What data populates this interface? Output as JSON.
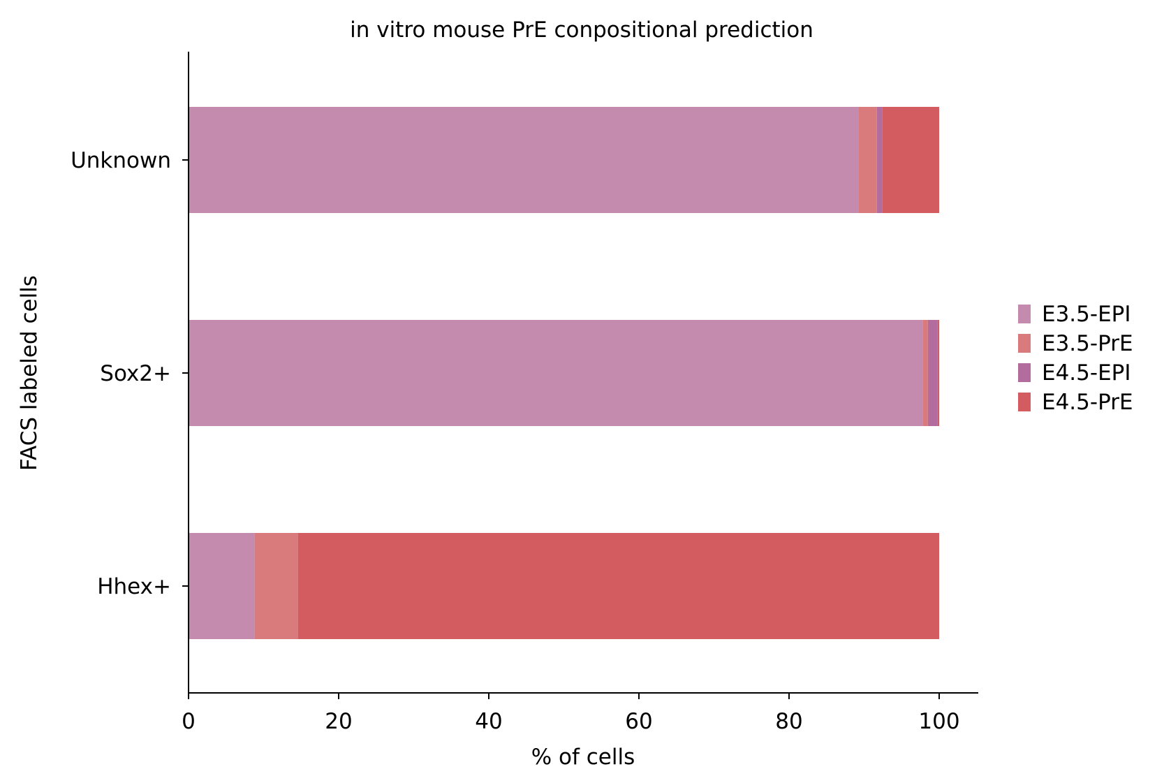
{
  "chart_data": {
    "type": "bar",
    "orientation": "horizontal",
    "stacked": true,
    "title": "in vitro mouse PrE conpositional prediction",
    "xlabel": "% of cells",
    "ylabel": "FACS labeled cells",
    "categories": [
      "Unknown",
      "Sox2+",
      "Hhex+"
    ],
    "xlim": [
      0,
      105
    ],
    "xticks": [
      "0",
      "20",
      "40",
      "60",
      "80",
      "100"
    ],
    "grid": false,
    "legend_position": "right",
    "series": [
      {
        "name": "E3.5-EPI",
        "color": "#c48baf",
        "values": [
          89.3,
          97.8,
          8.8
        ]
      },
      {
        "name": "E3.5-PrE",
        "color": "#d97b7d",
        "values": [
          2.4,
          0.7,
          5.8
        ]
      },
      {
        "name": "E4.5-EPI",
        "color": "#b26d9e",
        "values": [
          0.7,
          1.3,
          0.0
        ]
      },
      {
        "name": "E4.5-PrE",
        "color": "#d25c60",
        "values": [
          7.6,
          0.2,
          85.4
        ]
      }
    ]
  }
}
